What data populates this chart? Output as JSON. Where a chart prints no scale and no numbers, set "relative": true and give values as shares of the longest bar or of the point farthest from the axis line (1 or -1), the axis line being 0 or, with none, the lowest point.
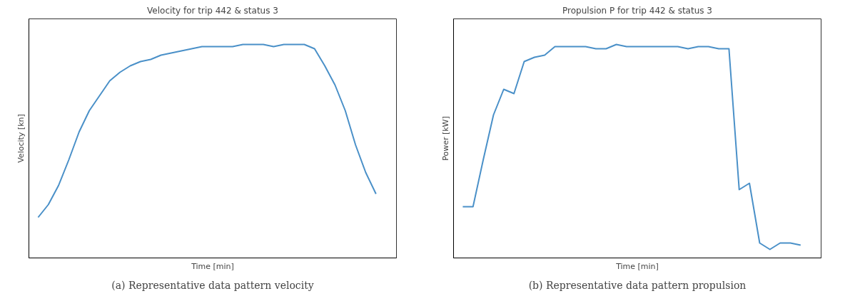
{
  "chart_data": [
    {
      "type": "line",
      "title": "Velocity for trip 442 & status 3",
      "xlabel": "Time [min]",
      "ylabel": "Velocity [kn]",
      "relative": true,
      "categories": [
        null,
        null,
        null,
        null,
        null,
        null,
        null,
        null,
        null,
        null,
        null,
        null,
        null,
        null,
        null,
        null,
        null,
        null,
        null,
        null,
        null,
        null,
        null,
        null,
        null,
        null,
        null,
        null,
        null,
        null,
        null,
        null,
        null,
        null
      ],
      "series": [
        {
          "color": "#4a90c8",
          "values": [
            0.19,
            0.25,
            0.34,
            0.46,
            0.59,
            0.69,
            0.76,
            0.83,
            0.87,
            0.9,
            0.92,
            0.93,
            0.95,
            0.96,
            0.97,
            0.98,
            0.99,
            0.99,
            0.99,
            0.99,
            1.0,
            1.0,
            1.0,
            0.99,
            1.0,
            1.0,
            1.0,
            0.98,
            0.9,
            0.81,
            0.69,
            0.53,
            0.4,
            0.3
          ]
        }
      ],
      "annotations": [
        "(a) Representative data pattern velocity"
      ]
    },
    {
      "type": "line",
      "title": "Propulsion P for trip 442 & status 3",
      "xlabel": "Time [min]",
      "ylabel": "Power [kW]",
      "relative": true,
      "categories": [
        null,
        null,
        null,
        null,
        null,
        null,
        null,
        null,
        null,
        null,
        null,
        null,
        null,
        null,
        null,
        null,
        null,
        null,
        null,
        null,
        null,
        null,
        null,
        null,
        null,
        null,
        null,
        null,
        null,
        null,
        null,
        null,
        null,
        null
      ],
      "series": [
        {
          "color": "#4a90c8",
          "values": [
            0.24,
            0.24,
            0.46,
            0.67,
            0.79,
            0.77,
            0.92,
            0.94,
            0.95,
            0.99,
            0.99,
            0.99,
            0.99,
            0.98,
            0.98,
            1.0,
            0.99,
            0.99,
            0.99,
            0.99,
            0.99,
            0.99,
            0.98,
            0.99,
            0.99,
            0.98,
            0.98,
            0.32,
            0.35,
            0.07,
            0.04,
            0.07,
            0.07,
            0.06
          ]
        }
      ],
      "annotations": [
        "(b) Representative data pattern propulsion"
      ]
    }
  ]
}
